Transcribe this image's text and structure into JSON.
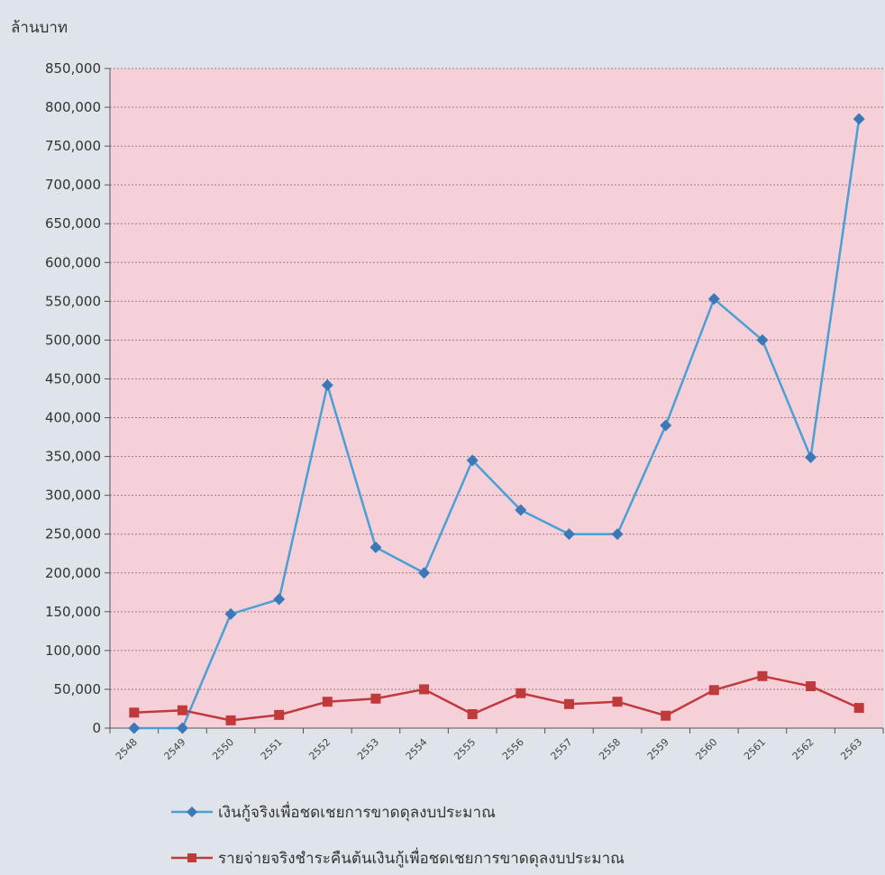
{
  "chart_data": {
    "type": "line",
    "title": "",
    "unit_label": "ล้านบาท",
    "xlabel": "",
    "ylabel": "",
    "categories": [
      "2548",
      "2549",
      "2550",
      "2551",
      "2552",
      "2553",
      "2554",
      "2555",
      "2556",
      "2557",
      "2558",
      "2559",
      "2560",
      "2561",
      "2562",
      "2563"
    ],
    "ylim": [
      0,
      850000
    ],
    "yticks": [
      "0",
      "50,000",
      "100,000",
      "150,000",
      "200,000",
      "250,000",
      "300,000",
      "350,000",
      "400,000",
      "450,000",
      "500,000",
      "550,000",
      "600,000",
      "650,000",
      "700,000",
      "750,000",
      "800,000",
      "850,000"
    ],
    "grid": true,
    "legend_position": "bottom",
    "plot_background": "#f5d0d8",
    "series": [
      {
        "name": "เงินกู้จริงเพื่อชดเชยการขาดดุลงบประมาณ",
        "color": "#4a9fd4",
        "marker": "diamond",
        "values": [
          0,
          0,
          147000,
          166000,
          442000,
          233000,
          200000,
          345000,
          281000,
          250000,
          250000,
          390000,
          553000,
          500000,
          349000,
          785000
        ]
      },
      {
        "name": "รายจ่ายจริงชำระคืนต้นเงินกู้เพื่อชดเชยการขาดดุลงบประมาณ",
        "color": "#c0393b",
        "marker": "square",
        "values": [
          20000,
          23000,
          10000,
          17000,
          34000,
          38000,
          50000,
          18000,
          45000,
          31000,
          34000,
          16000,
          49000,
          67000,
          54000,
          26000
        ]
      }
    ]
  }
}
